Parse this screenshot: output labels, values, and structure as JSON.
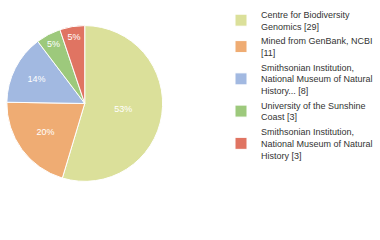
{
  "chart_data": {
    "type": "pie",
    "categories": [
      "Centre for Biodiversity Genomics [29]",
      "Mined from GenBank, NCBI [11]",
      "Smithsonian Institution, National Museum of Natural History... [8]",
      "University of the Sunshine Coast [3]",
      "Smithsonian Institution, National Museum of Natural History [3]"
    ],
    "values": [
      53,
      20,
      14,
      5,
      5
    ],
    "value_labels": [
      "53%",
      "20%",
      "14%",
      "5%",
      "5%"
    ],
    "colors": [
      "#dbe09a",
      "#efac73",
      "#a2b9e1",
      "#9dc97c",
      "#e07462"
    ],
    "data_labels": true,
    "legend": "right"
  }
}
